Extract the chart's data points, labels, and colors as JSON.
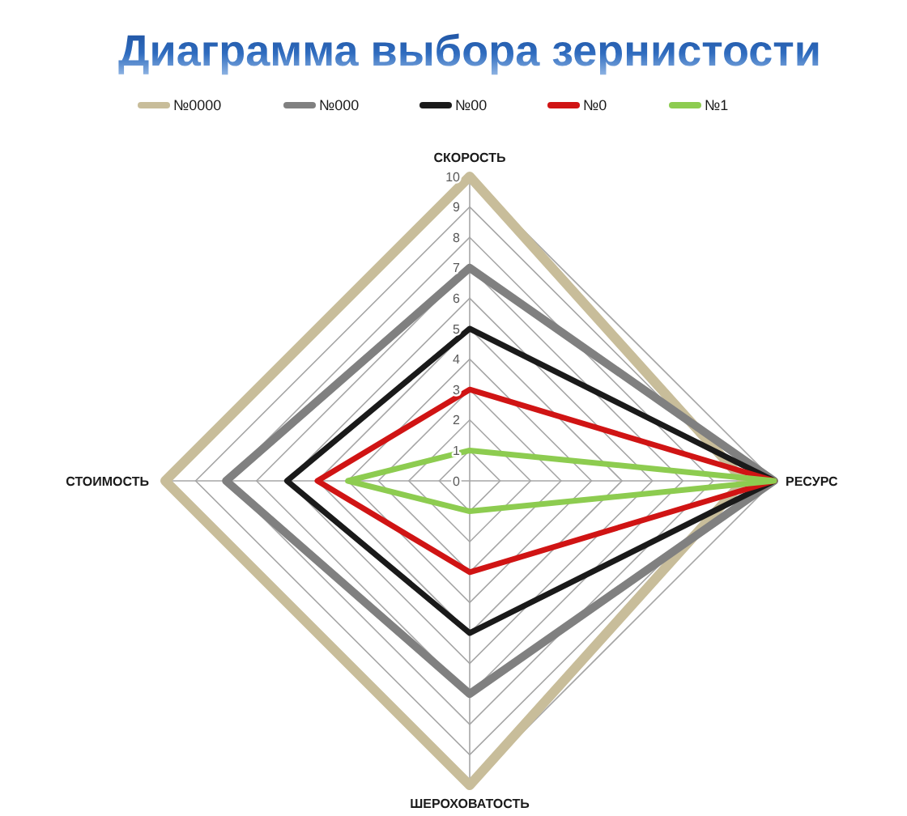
{
  "chart_data": {
    "type": "radar",
    "title": "Диаграмма выбора зернистости",
    "categories": [
      "СКОРОСТЬ",
      "РЕСУРС",
      "ШЕРОХОВАТОСТЬ",
      "СТОИМОСТЬ"
    ],
    "series": [
      {
        "name": "№0000",
        "color": "#c8bd9a",
        "values": [
          10,
          9,
          10,
          10
        ]
      },
      {
        "name": "№000",
        "color": "#808080",
        "values": [
          7,
          10,
          7,
          8
        ]
      },
      {
        "name": "№00",
        "color": "#1a1a1a",
        "values": [
          5,
          10,
          5,
          6
        ]
      },
      {
        "name": "№0",
        "color": "#d01414",
        "values": [
          3,
          10,
          3,
          5
        ]
      },
      {
        "name": "№1",
        "color": "#8dcc50",
        "values": [
          1,
          10,
          1,
          4
        ]
      }
    ],
    "ylim": [
      0,
      10
    ],
    "yticks": [
      0,
      1,
      2,
      3,
      4,
      5,
      6,
      7,
      8,
      9,
      10
    ],
    "grid": true,
    "legend": "top"
  }
}
